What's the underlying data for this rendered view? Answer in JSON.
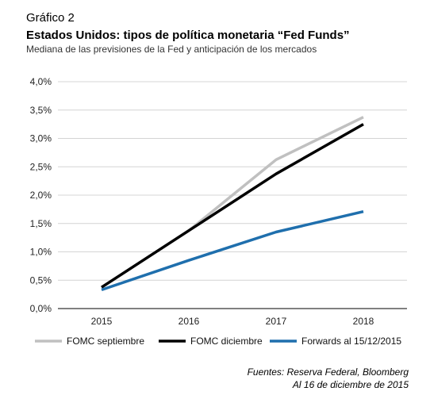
{
  "label": "Gráfico 2",
  "title": "Estados Unidos: tipos de política monetaria “Fed Funds”",
  "subtitle": "Mediana de las previsiones de la Fed y anticipación de los mercados",
  "source": "Fuentes: Reserva Federal, Bloomberg",
  "date_note": "Al 16 de diciembre de 2015",
  "chart_data": {
    "type": "line",
    "x": [
      "2015",
      "2016",
      "2017",
      "2018"
    ],
    "y_ticks": [
      "0,0%",
      "0,5%",
      "1,0%",
      "1,5%",
      "2,0%",
      "2,5%",
      "3,0%",
      "3,5%",
      "4,0%"
    ],
    "ylim": [
      0,
      4.0
    ],
    "grid": true,
    "legend_position": "bottom",
    "series": [
      {
        "name": "FOMC septiembre",
        "color": "#c0c0c0",
        "values": [
          0.375,
          1.375,
          2.625,
          3.375
        ]
      },
      {
        "name": "FOMC diciembre",
        "color": "#000000",
        "values": [
          0.375,
          1.375,
          2.375,
          3.25
        ]
      },
      {
        "name": "Forwards al 15/12/2015",
        "color": "#1f6fad",
        "values": [
          0.33,
          0.85,
          1.35,
          1.71
        ]
      }
    ]
  }
}
